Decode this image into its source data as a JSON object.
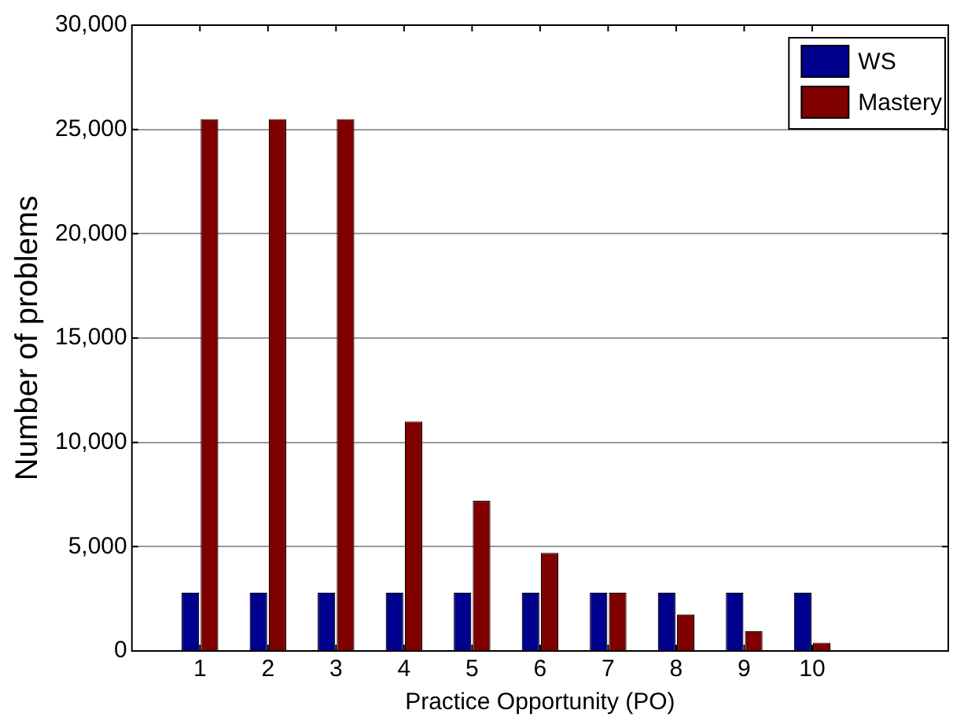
{
  "chart_data": {
    "type": "bar",
    "xlabel": "Practice Opportunity (PO)",
    "ylabel": "Number of problems",
    "x": [
      1,
      2,
      3,
      4,
      5,
      6,
      7,
      8,
      9,
      10
    ],
    "series": [
      {
        "name": "WS",
        "color": "#00008f",
        "values": [
          2800,
          2800,
          2800,
          2800,
          2800,
          2800,
          2800,
          2800,
          2800,
          2800
        ]
      },
      {
        "name": "Mastery",
        "color": "#800000",
        "values": [
          25500,
          25500,
          25500,
          11000,
          7200,
          4700,
          2800,
          1750,
          950,
          400
        ]
      }
    ],
    "xlim": [
      0,
      12
    ],
    "xticks": [
      1,
      2,
      3,
      4,
      5,
      6,
      7,
      8,
      9,
      10
    ],
    "ylim": [
      0,
      30000
    ],
    "yticks": [
      {
        "value": 0,
        "label": "0"
      },
      {
        "value": 5000,
        "label": "5,000"
      },
      {
        "value": 10000,
        "label": "10,000"
      },
      {
        "value": 15000,
        "label": "15,000"
      },
      {
        "value": 20000,
        "label": "20,000"
      },
      {
        "value": 25000,
        "label": "25,000"
      },
      {
        "value": 30000,
        "label": "30,000"
      }
    ],
    "grid": "y",
    "legend": "top right"
  }
}
